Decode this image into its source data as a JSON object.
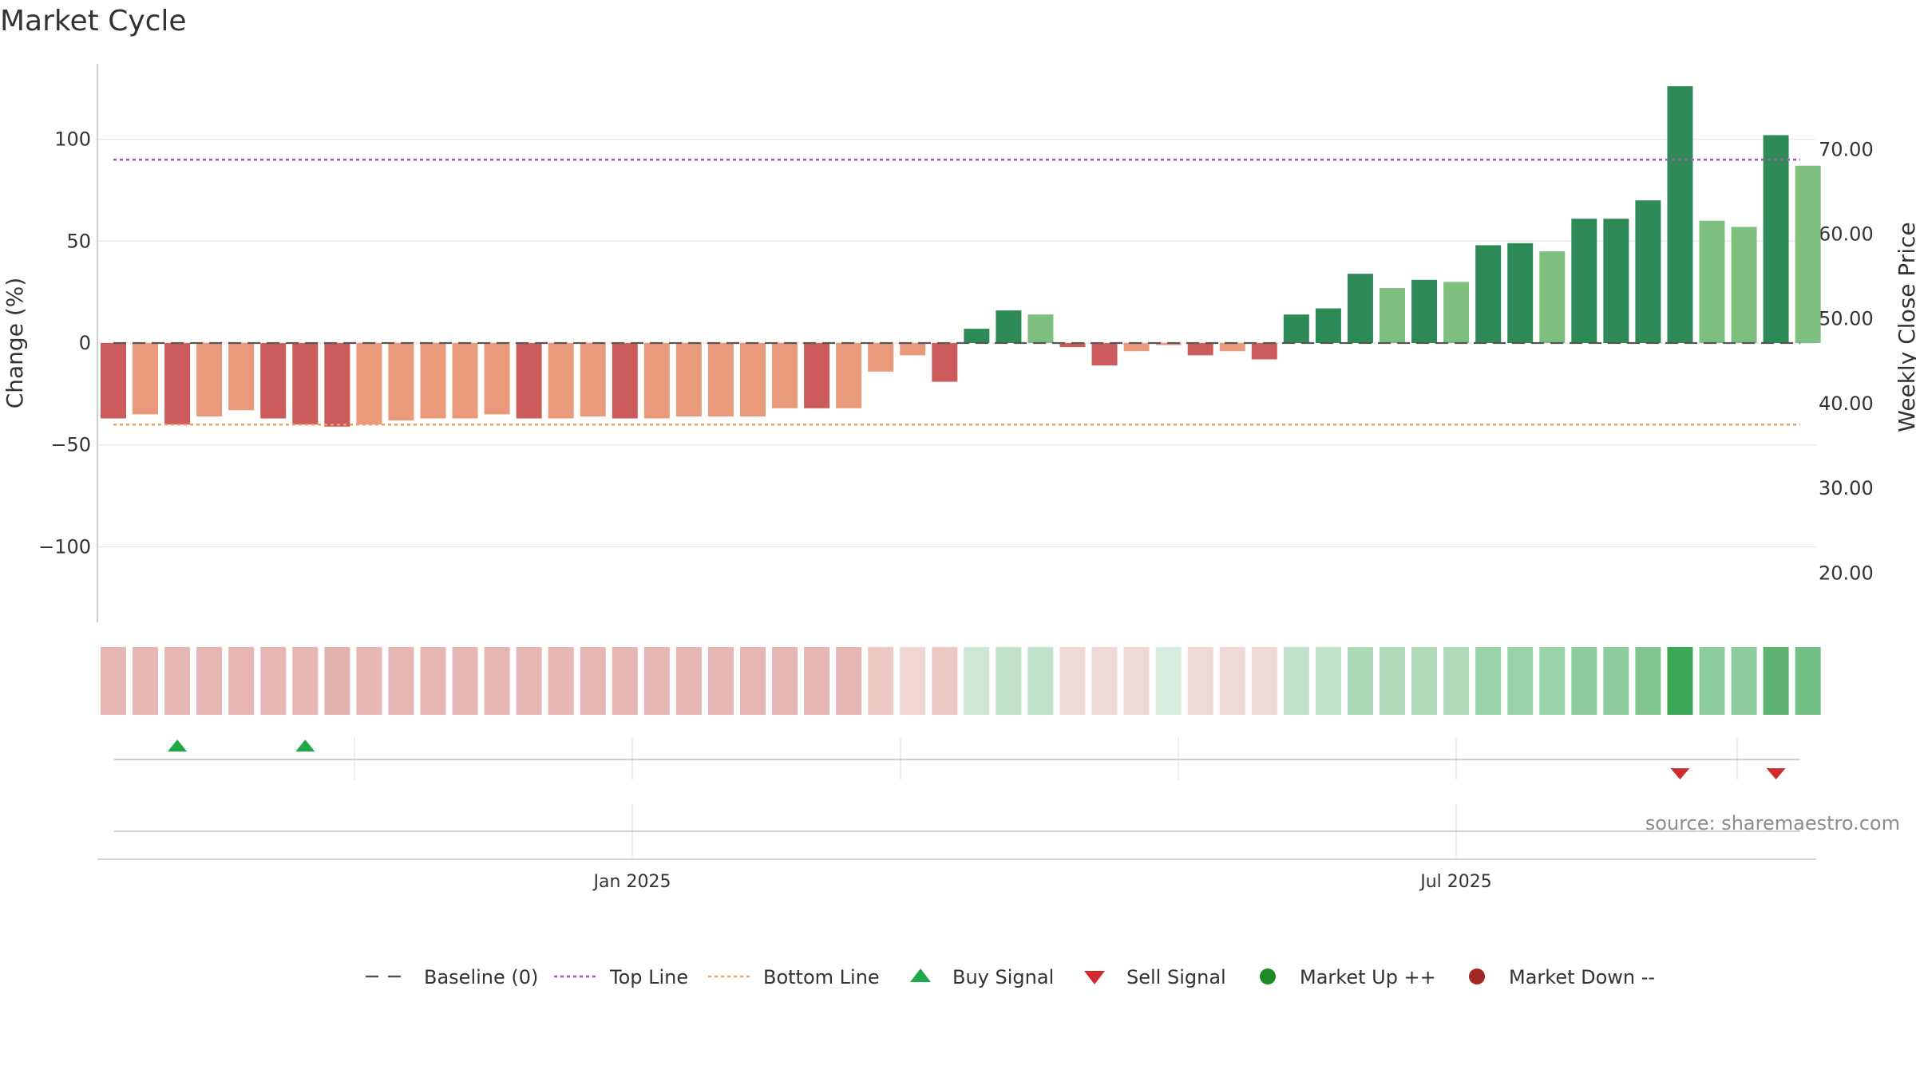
{
  "title": "Market Cycle",
  "source": "source: sharemaestro.com",
  "chart_data": {
    "type": "bar",
    "ylabel_left": "Change (%)",
    "ylabel_right": "Weekly Close Price",
    "y_left_lim": [
      -137,
      137
    ],
    "y_right_lim": [
      14.2,
      80.1
    ],
    "y_left_ticks": [
      100,
      50,
      0,
      -50,
      -100
    ],
    "y_left_tick_labels": [
      "100",
      "50",
      "0",
      "−50",
      "−100"
    ],
    "y_right_ticks": [
      70,
      60,
      50,
      40,
      30,
      20
    ],
    "y_right_tick_labels": [
      "70.00",
      "60.00",
      "50.00",
      "40.00",
      "30.00",
      "20.00"
    ],
    "x_tick_labels": [
      "Jan 2025",
      "Jul 2025"
    ],
    "grid": true,
    "reference_lines": {
      "baseline": 0,
      "top_line": 90,
      "bottom_line": -40
    },
    "values": [
      -37,
      -35,
      -40,
      -36,
      -33,
      -37,
      -40,
      -41,
      -40,
      -38,
      -37,
      -37,
      -35,
      -37,
      -37,
      -36,
      -37,
      -37,
      -36,
      -36,
      -36,
      -32,
      -32,
      -32,
      -14,
      -6,
      -19,
      7,
      16,
      14,
      -2,
      -11,
      -4,
      -1,
      -6,
      -4,
      -8,
      14,
      17,
      34,
      27,
      31,
      30,
      48,
      49,
      45,
      61,
      61,
      70,
      126,
      60,
      57,
      102,
      87
    ],
    "bar_colors": [
      "#cc5c5c",
      "#e89a7a",
      "#cc5c5c",
      "#e89a7a",
      "#e89a7a",
      "#cc5c5c",
      "#cc5c5c",
      "#cc5c5c",
      "#e89a7a",
      "#e89a7a",
      "#e89a7a",
      "#e89a7a",
      "#e89a7a",
      "#cc5c5c",
      "#e89a7a",
      "#e89a7a",
      "#cc5c5c",
      "#e89a7a",
      "#e89a7a",
      "#e89a7a",
      "#e89a7a",
      "#e89a7a",
      "#cc5c5c",
      "#e89a7a",
      "#e89a7a",
      "#e89a7a",
      "#cc5c5c",
      "#2e8b57",
      "#2e8b57",
      "#7fbf7f",
      "#cc5c5c",
      "#cc5c5c",
      "#e89a7a",
      "#e89a7a",
      "#cc5c5c",
      "#e89a7a",
      "#cc5c5c",
      "#2e8b57",
      "#2e8b57",
      "#2e8b57",
      "#7fbf7f",
      "#2e8b57",
      "#7fbf7f",
      "#2e8b57",
      "#2e8b57",
      "#7fbf7f",
      "#2e8b57",
      "#2e8b57",
      "#2e8b57",
      "#2e8b57",
      "#7fbf7f",
      "#7fbf7f",
      "#2e8b57",
      "#7fbf7f"
    ],
    "heatmap_colors": [
      "#e5b6b3",
      "#e5b6b3",
      "#e5b6b3",
      "#e5b6b3",
      "#e5b6b3",
      "#e5b6b3",
      "#e5b6b3",
      "#e1b2ad",
      "#e5b6b3",
      "#e5b6b3",
      "#e5b6b3",
      "#e5b6b3",
      "#e5b6b3",
      "#e5b6b3",
      "#e5b6b3",
      "#e5b6b3",
      "#e5b6b3",
      "#e5b6b3",
      "#e5b6b3",
      "#e5b6b3",
      "#e5b6b3",
      "#e5b6b3",
      "#e5b6b3",
      "#e5b6b3",
      "#ecc8c4",
      "#f0d5d3",
      "#ecc8c4",
      "#cde7d4",
      "#c1e2ca",
      "#c1e2ca",
      "#f1d8d8",
      "#f1d8d8",
      "#f1d8d8",
      "#d8ede0",
      "#f1d8d8",
      "#f1d8d8",
      "#f1d8d8",
      "#c1e2ca",
      "#c1e2ca",
      "#acd9b7",
      "#b0dbbb",
      "#b0dbbb",
      "#b0dbbb",
      "#9bd3a8",
      "#9bd3a8",
      "#9bd3a8",
      "#8dcc9b",
      "#8dcc9b",
      "#80c690",
      "#3aa757",
      "#8dcc9b",
      "#8dcc9b",
      "#5db36f",
      "#72c086"
    ],
    "buy_signals": [
      2,
      6
    ],
    "sell_signals": [
      49,
      52
    ],
    "legend": [
      "Baseline (0)",
      "Top Line",
      "Bottom Line",
      "Buy Signal",
      "Sell Signal",
      "Market Up ++",
      "Market Down --"
    ],
    "legend_placement": "bottom-center",
    "colors": {
      "red_strong": "#cc5c5c",
      "red_light": "#e89a7a",
      "green_strong": "#2e8b57",
      "green_light": "#7fbf7f",
      "top_line": "#9b59b6",
      "bottom_line": "#f0a060",
      "baseline": "#555555",
      "buy": "#1fa84a",
      "sell": "#d22b2b",
      "market_up": "#1e8a25",
      "market_down": "#a12727"
    }
  }
}
